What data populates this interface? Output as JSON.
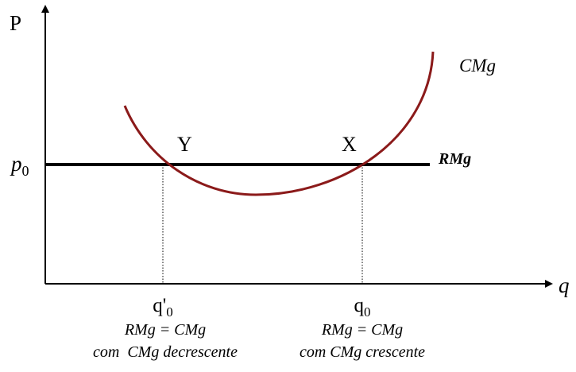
{
  "axes": {
    "y_label": "P",
    "x_label": "q"
  },
  "price": {
    "main": "p",
    "sub": "0"
  },
  "points": {
    "left": "Y",
    "right": "X"
  },
  "curves": {
    "cost": "CMg",
    "revenue": "RMg"
  },
  "quantities": [
    {
      "main": "q'",
      "sub": "0",
      "condition": "RMg = CMg",
      "note": "com  CMg decrescente"
    },
    {
      "main": "q",
      "sub": "0",
      "condition": "RMg = CMg",
      "note": "com CMg crescente"
    }
  ]
}
